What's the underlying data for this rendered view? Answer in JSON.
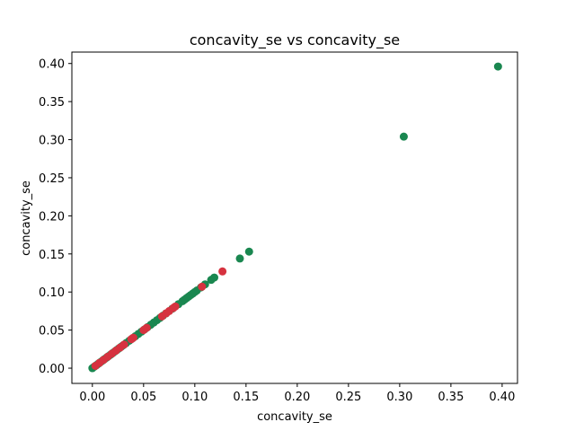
{
  "chart_data": {
    "type": "scatter",
    "title": "concavity_se vs concavity_se",
    "xlabel": "concavity_se",
    "ylabel": "concavity_se",
    "xlim": [
      -0.02,
      0.415
    ],
    "ylim": [
      -0.02,
      0.415
    ],
    "xticks": [
      0.0,
      0.05,
      0.1,
      0.15,
      0.2,
      0.25,
      0.3,
      0.35,
      0.4
    ],
    "yticks": [
      0.0,
      0.05,
      0.1,
      0.15,
      0.2,
      0.25,
      0.3,
      0.35,
      0.4
    ],
    "xtick_labels": [
      "0.00",
      "0.05",
      "0.10",
      "0.15",
      "0.20",
      "0.25",
      "0.30",
      "0.35",
      "0.40"
    ],
    "ytick_labels": [
      "0.00",
      "0.05",
      "0.10",
      "0.15",
      "0.20",
      "0.25",
      "0.30",
      "0.35",
      "0.40"
    ],
    "grid": false,
    "colors": {
      "series_a": "#1a8750",
      "series_b": "#d6323f"
    },
    "series": [
      {
        "color": "#1a8750",
        "x": [
          0.0,
          0.002,
          0.004,
          0.006,
          0.008,
          0.01,
          0.012,
          0.014,
          0.016,
          0.018,
          0.02,
          0.022,
          0.024,
          0.026,
          0.028,
          0.03,
          0.033,
          0.036,
          0.039,
          0.042,
          0.045,
          0.048,
          0.051,
          0.054,
          0.057,
          0.06,
          0.063,
          0.066,
          0.069,
          0.072,
          0.078,
          0.084,
          0.088,
          0.09,
          0.092,
          0.094,
          0.096,
          0.098,
          0.1,
          0.102,
          0.106,
          0.11,
          0.116,
          0.119,
          0.144,
          0.153,
          0.304,
          0.396
        ],
        "y": [
          0.0,
          0.002,
          0.004,
          0.006,
          0.008,
          0.01,
          0.012,
          0.014,
          0.016,
          0.018,
          0.02,
          0.022,
          0.024,
          0.026,
          0.028,
          0.03,
          0.033,
          0.036,
          0.039,
          0.042,
          0.045,
          0.048,
          0.051,
          0.054,
          0.057,
          0.06,
          0.063,
          0.066,
          0.069,
          0.072,
          0.078,
          0.084,
          0.088,
          0.09,
          0.092,
          0.094,
          0.096,
          0.098,
          0.1,
          0.102,
          0.106,
          0.11,
          0.116,
          0.119,
          0.144,
          0.153,
          0.304,
          0.396
        ]
      },
      {
        "color": "#d6323f",
        "x": [
          0.003,
          0.007,
          0.011,
          0.015,
          0.019,
          0.023,
          0.027,
          0.031,
          0.038,
          0.04,
          0.05,
          0.053,
          0.068,
          0.072,
          0.075,
          0.079,
          0.081,
          0.107,
          0.127
        ],
        "y": [
          0.003,
          0.007,
          0.011,
          0.015,
          0.019,
          0.023,
          0.027,
          0.031,
          0.038,
          0.04,
          0.05,
          0.053,
          0.068,
          0.072,
          0.075,
          0.079,
          0.081,
          0.107,
          0.127
        ]
      }
    ]
  }
}
